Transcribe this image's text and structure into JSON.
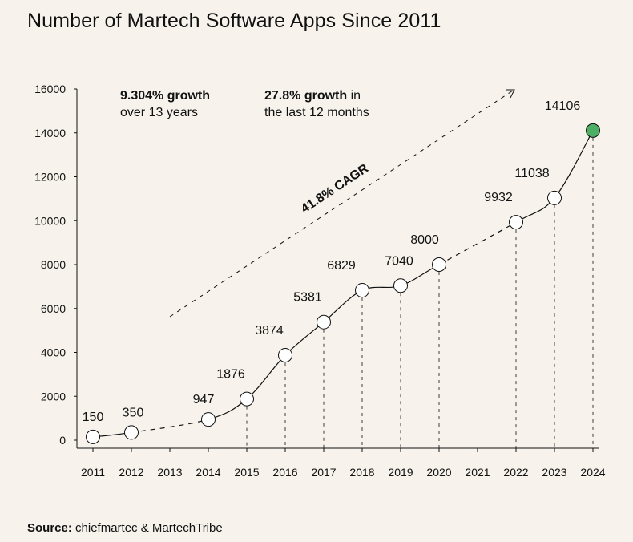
{
  "title": "Number of Martech Software Apps Since 2011",
  "source": {
    "label": "Source:",
    "text": "chiefmartec & MartechTribe"
  },
  "notes": [
    {
      "bold": "9.304% growth",
      "rest1": "",
      "line2": "over 13 years"
    },
    {
      "bold": "27.8% growth",
      "rest1": " in",
      "line2": "the last 12 months"
    }
  ],
  "cagr_label": "41.8% CAGR",
  "colors": {
    "background": "#f7f3ec",
    "highlight": "#4caf63",
    "line": "#111111"
  },
  "chart_data": {
    "type": "line",
    "title": "Number of Martech Software Apps Since 2011",
    "x_ticks": [
      "2011",
      "2012",
      "2013",
      "2014",
      "2015",
      "2016",
      "2017",
      "2018",
      "2019",
      "2020",
      "2021",
      "2022",
      "2023",
      "2024"
    ],
    "y_ticks": [
      0,
      2000,
      4000,
      6000,
      8000,
      10000,
      12000,
      14000,
      16000
    ],
    "ylim": [
      0,
      16000
    ],
    "grid": false,
    "points": [
      {
        "x": "2011",
        "y": 150
      },
      {
        "x": "2012",
        "y": 350
      },
      {
        "x": "2014",
        "y": 947
      },
      {
        "x": "2015",
        "y": 1876
      },
      {
        "x": "2016",
        "y": 3874
      },
      {
        "x": "2017",
        "y": 5381
      },
      {
        "x": "2018",
        "y": 6829
      },
      {
        "x": "2019",
        "y": 7040
      },
      {
        "x": "2020",
        "y": 8000
      },
      {
        "x": "2022",
        "y": 9932
      },
      {
        "x": "2023",
        "y": 11038
      },
      {
        "x": "2024",
        "y": 14106
      }
    ],
    "highlight_point": "2024"
  }
}
